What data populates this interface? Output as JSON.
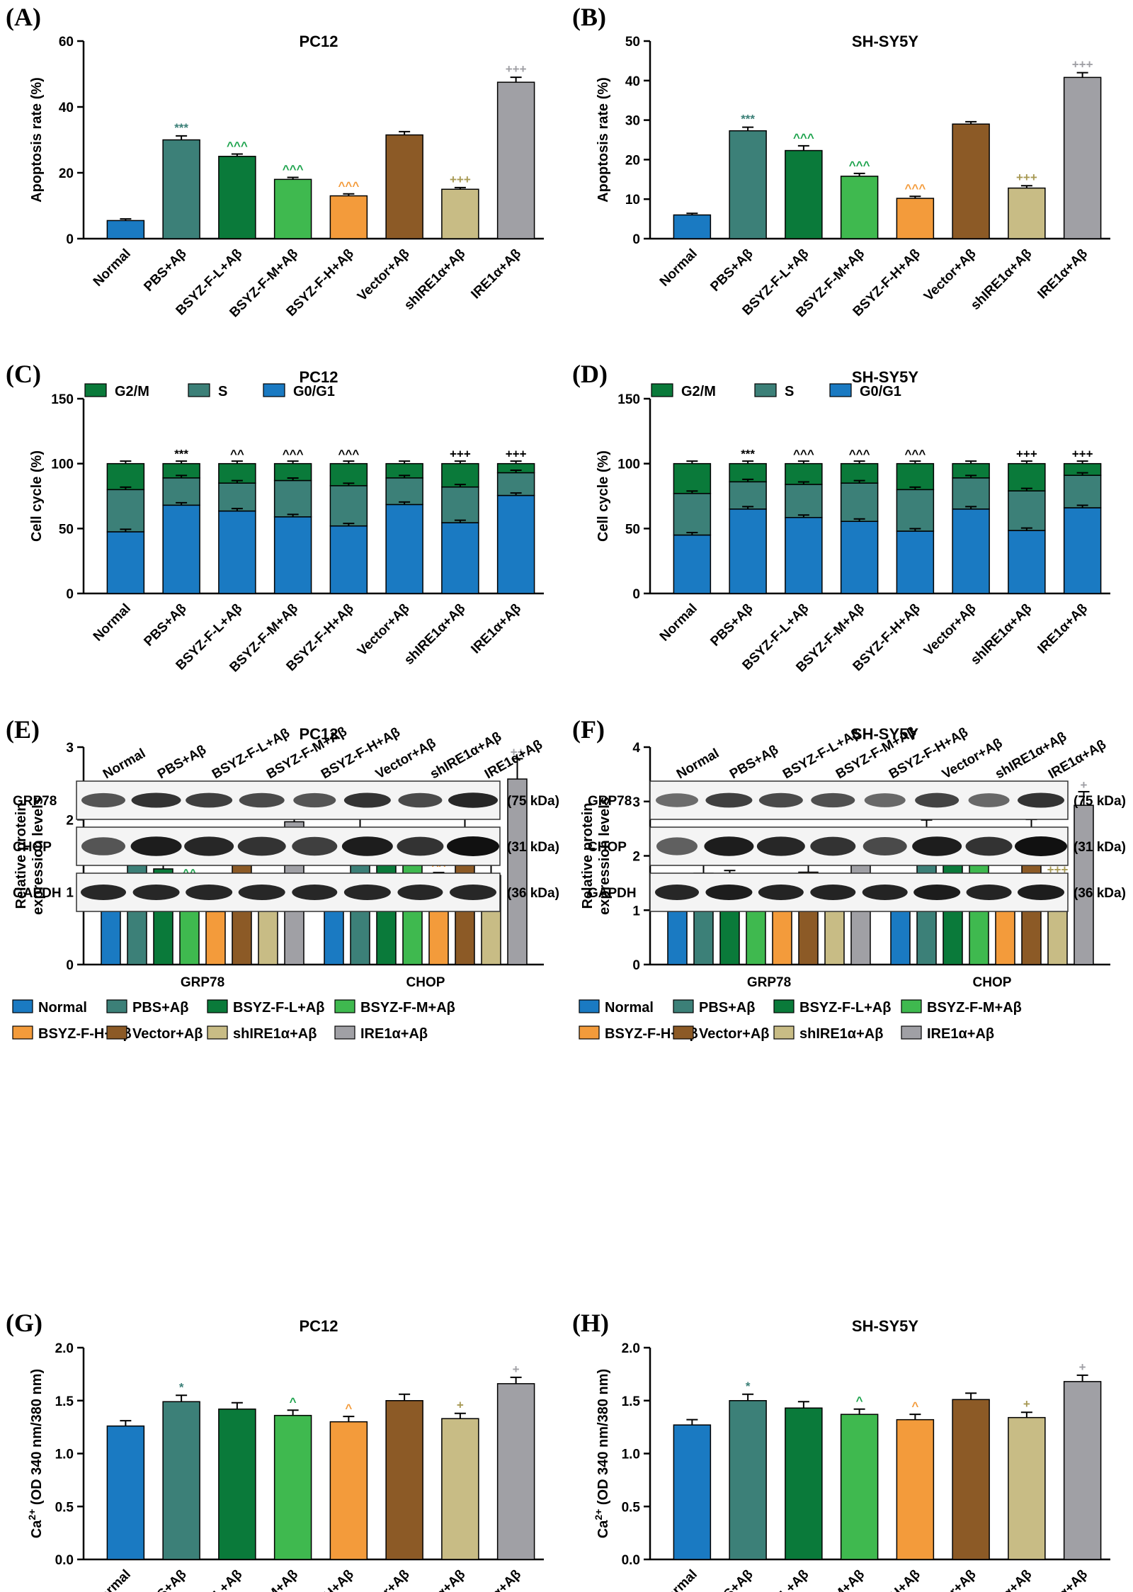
{
  "panel_labels": [
    "(A)",
    "(B)",
    "(C)",
    "(D)",
    "(E)",
    "(F)",
    "(G)",
    "(H)"
  ],
  "groups": [
    {
      "name": "Normal",
      "color": "#1a7ac2"
    },
    {
      "name": "PBS+Aβ",
      "color": "#3c8078"
    },
    {
      "name": "BSYZ-F-L+Aβ",
      "color": "#0a7a3a"
    },
    {
      "name": "BSYZ-F-M+Aβ",
      "color": "#3fb94f"
    },
    {
      "name": "BSYZ-F-H+Aβ",
      "color": "#f39b3b"
    },
    {
      "name": "Vector+Aβ",
      "color": "#8c5a26"
    },
    {
      "name": "shIRE1α+Aβ",
      "color": "#c8bc85"
    },
    {
      "name": "IRE1α+Aβ",
      "color": "#a0a0a5"
    }
  ],
  "sig_colors": [
    "#3c8078",
    "#1ba24b",
    "#f39b3b",
    "#a89a55",
    "#a0a0a5"
  ],
  "chart_data": [
    {
      "panel": "(A)",
      "type": "bar",
      "title": "PC12",
      "ylabel": "Apoptosis rate (%)",
      "ylim": [
        0,
        60
      ],
      "yticks": [
        0,
        20,
        40,
        60
      ],
      "values": [
        5.5,
        30,
        25,
        18,
        13,
        31.5,
        15,
        47.5
      ],
      "errors": [
        0.5,
        1.2,
        0.7,
        0.6,
        0.6,
        1.0,
        0.5,
        1.5
      ],
      "sig": [
        "",
        "***",
        "^^^",
        "^^^",
        "^^^",
        "",
        "+++",
        "+++"
      ]
    },
    {
      "panel": "(B)",
      "type": "bar",
      "title": "SH-SY5Y",
      "ylabel": "Apoptosis rate (%)",
      "ylim": [
        0,
        50
      ],
      "yticks": [
        0,
        10,
        20,
        30,
        40,
        50
      ],
      "values": [
        6,
        27.3,
        22.3,
        15.8,
        10.2,
        29,
        12.8,
        40.8
      ],
      "errors": [
        0.4,
        0.9,
        1.2,
        0.7,
        0.5,
        0.6,
        0.6,
        1.2
      ],
      "sig": [
        "",
        "***",
        "^^^",
        "^^^",
        "^^^",
        "",
        "+++",
        "+++"
      ]
    },
    {
      "panel": "(C)",
      "type": "bar",
      "stacked": true,
      "title": "PC12",
      "ylabel": "Cell cycle (%)",
      "ylim": [
        0,
        150
      ],
      "yticks": [
        0,
        50,
        100,
        150
      ],
      "legend": [
        "G2/M",
        "S",
        "G0/G1"
      ],
      "legend_colors": [
        "#0a7a3a",
        "#3c8078",
        "#1a7ac2"
      ],
      "g0g1": [
        47.5,
        68,
        63.5,
        59,
        52,
        68.5,
        54.5,
        75.5
      ],
      "s_top": [
        80,
        89,
        85,
        87,
        83,
        89,
        82,
        93
      ],
      "total": [
        100,
        100,
        100,
        100,
        100,
        100,
        100,
        100
      ],
      "sig": [
        "",
        "***",
        "^^",
        "^^^",
        "^^^",
        "",
        "+++",
        "+++"
      ]
    },
    {
      "panel": "(D)",
      "type": "bar",
      "stacked": true,
      "title": "SH-SY5Y",
      "ylabel": "Cell cycle (%)",
      "ylim": [
        0,
        150
      ],
      "yticks": [
        0,
        50,
        100,
        150
      ],
      "legend": [
        "G2/M",
        "S",
        "G0/G1"
      ],
      "legend_colors": [
        "#0a7a3a",
        "#3c8078",
        "#1a7ac2"
      ],
      "g0g1": [
        45,
        65,
        58.5,
        55.5,
        48,
        65,
        48.5,
        66
      ],
      "s_top": [
        77,
        86,
        84,
        85,
        80,
        89,
        79,
        91
      ],
      "total": [
        100,
        100,
        100,
        100,
        100,
        100,
        100,
        100
      ],
      "sig": [
        "",
        "***",
        "^^^",
        "^^^",
        "^^^",
        "",
        "+++",
        "+++"
      ]
    },
    {
      "panel": "(E)",
      "type": "bar",
      "grouped": true,
      "title": "PC12",
      "ylabel": [
        "Relative protein",
        "expression levels"
      ],
      "ylim": [
        0,
        3
      ],
      "yticks": [
        0,
        1,
        2,
        3
      ],
      "categories": [
        "GRP78",
        "CHOP"
      ],
      "series_values": [
        [
          1.0,
          1.58,
          1.32,
          1.05,
          0.73,
          1.57,
          0.84,
          1.97
        ],
        [
          1.0,
          1.88,
          1.62,
          1.45,
          1.15,
          1.88,
          1.23,
          2.56
        ]
      ],
      "series_errors": [
        [
          0.1,
          0.16,
          0.12,
          0.12,
          0.06,
          0.17,
          0.08,
          0.18
        ],
        [
          0.12,
          0.2,
          0.14,
          0.12,
          0.12,
          0.23,
          0.17,
          0.28
        ]
      ],
      "sig": [
        [
          "",
          "**",
          "",
          "^^",
          "^^^",
          "",
          "+++",
          "+"
        ],
        [
          "",
          "***",
          "",
          "",
          "^^",
          "",
          "++",
          "++"
        ]
      ]
    },
    {
      "panel": "(F)",
      "type": "bar",
      "grouped": true,
      "title": "SH-SY5Y",
      "ylabel": [
        "Relative protein",
        "expression levels"
      ],
      "ylim": [
        0,
        4
      ],
      "yticks": [
        0,
        1,
        2,
        3,
        4
      ],
      "categories": [
        "GRP78",
        "CHOP"
      ],
      "series_values": [
        [
          1.0,
          1.68,
          1.53,
          1.4,
          1.02,
          1.7,
          1.0,
          2.15
        ],
        [
          1.0,
          2.48,
          2.13,
          1.85,
          1.3,
          2.47,
          1.5,
          2.93
        ]
      ],
      "series_errors": [
        [
          0.1,
          0.2,
          0.2,
          0.18,
          0.1,
          0.15,
          0.12,
          0.2
        ],
        [
          0.08,
          0.18,
          0.14,
          0.14,
          0.12,
          0.2,
          0.12,
          0.25
        ]
      ],
      "sig": [
        [
          "",
          "**",
          "",
          "",
          "^^",
          "",
          "++",
          "+"
        ],
        [
          "",
          "***",
          "",
          "^^",
          "^^^",
          "",
          "+++",
          "+"
        ]
      ]
    },
    {
      "panel": "(G)",
      "type": "bar",
      "title": "PC12",
      "ylabel": "Ca2+ (OD 340 nm/380 nm)",
      "ylim": [
        0,
        2.0
      ],
      "yticks": [
        "0.0",
        "0.5",
        "1.0",
        "1.5",
        "2.0"
      ],
      "values": [
        1.26,
        1.49,
        1.42,
        1.36,
        1.3,
        1.5,
        1.33,
        1.66
      ],
      "errors": [
        0.05,
        0.06,
        0.06,
        0.05,
        0.05,
        0.06,
        0.05,
        0.06
      ],
      "sig": [
        "",
        "*",
        "",
        "^",
        "^",
        "",
        "+",
        "+"
      ]
    },
    {
      "panel": "(H)",
      "type": "bar",
      "title": "SH-SY5Y",
      "ylabel": "Ca2+ (OD 340 nm/380 nm)",
      "ylim": [
        0,
        2.0
      ],
      "yticks": [
        "0.0",
        "0.5",
        "1.0",
        "1.5",
        "2.0"
      ],
      "values": [
        1.27,
        1.5,
        1.43,
        1.37,
        1.32,
        1.51,
        1.34,
        1.68
      ],
      "errors": [
        0.05,
        0.06,
        0.06,
        0.05,
        0.05,
        0.06,
        0.05,
        0.06
      ],
      "sig": [
        "",
        "*",
        "",
        "^",
        "^",
        "",
        "+",
        "+"
      ]
    }
  ],
  "western_blots": [
    {
      "panel": "(E)",
      "rows": [
        "GRP78",
        "CHOP",
        "GAPDH"
      ],
      "sizes": [
        "(75 kDa)",
        "(31 kDa)",
        "(36 kDa)"
      ]
    },
    {
      "panel": "(F)",
      "rows": [
        "GRP78",
        "CHOP",
        "GAPDH"
      ],
      "sizes": [
        "(75 kDa)",
        "(31 kDa)",
        "(36 kDa)"
      ]
    }
  ]
}
